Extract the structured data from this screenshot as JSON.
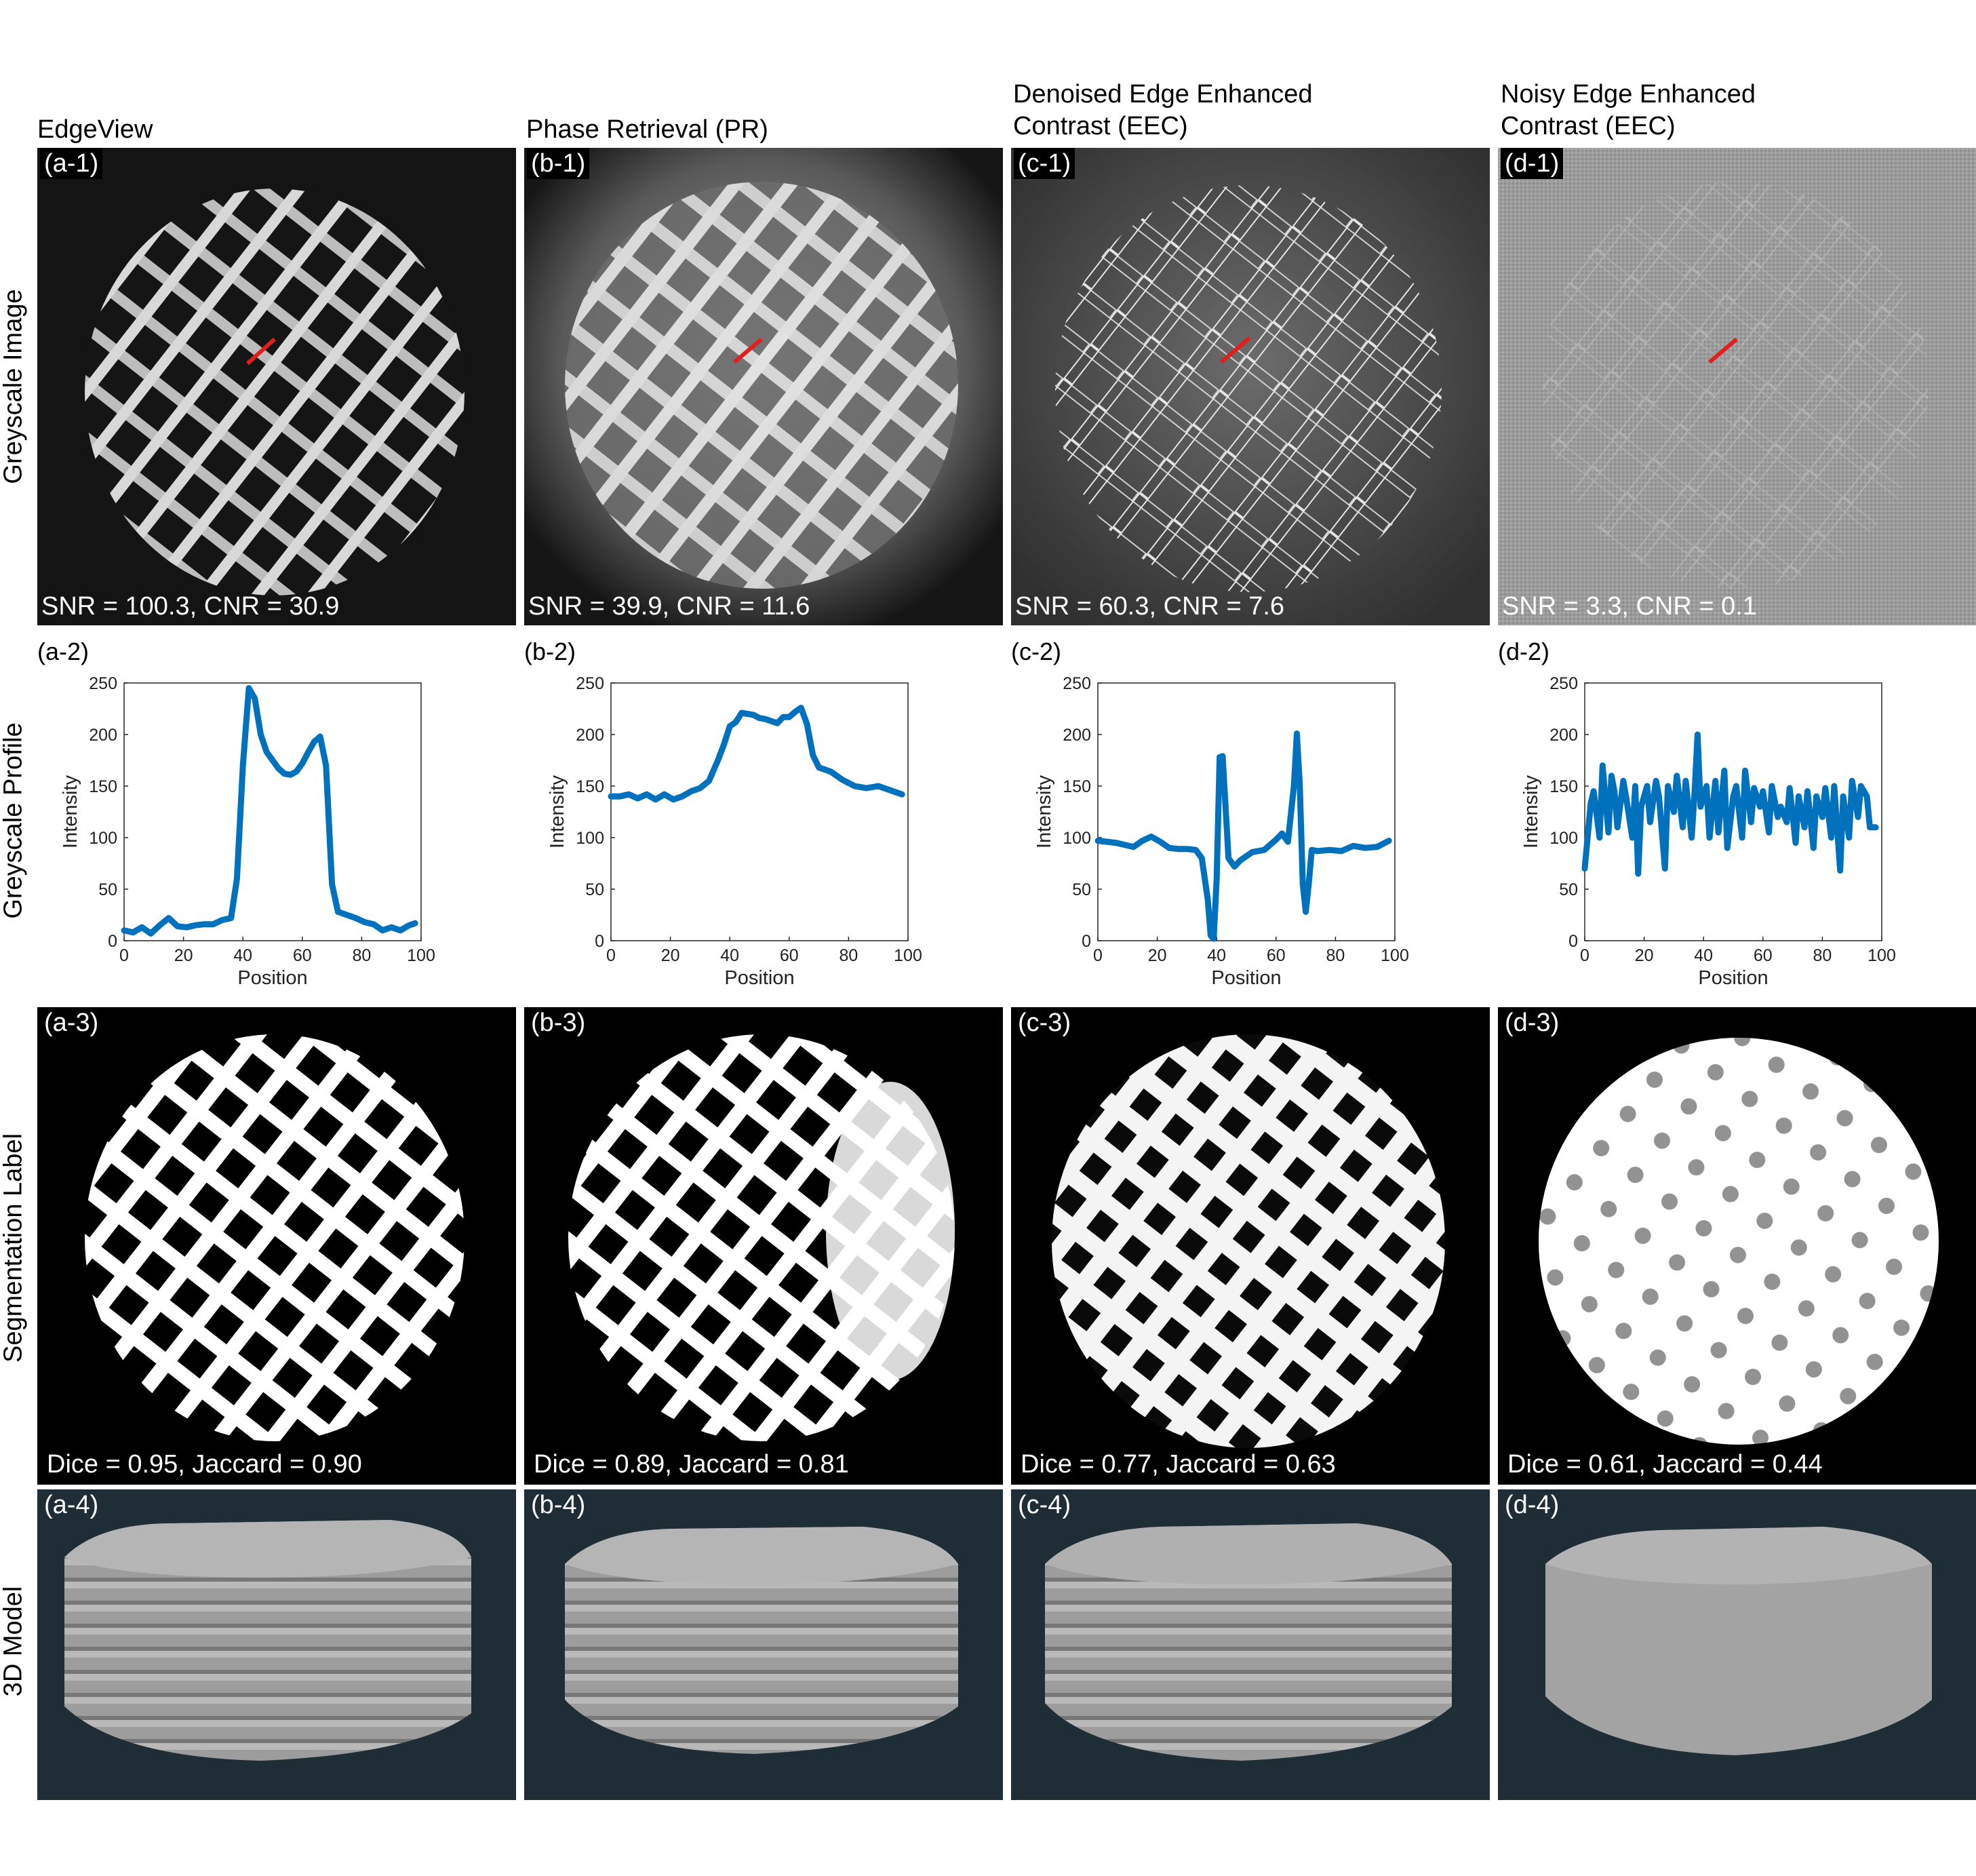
{
  "columns": [
    {
      "title": [
        "EdgeView"
      ],
      "img_tag": "(a-1)",
      "metric": "SNR = 100.3, CNR = 30.9",
      "profile_tag": "(a-2)",
      "seg_tag": "(a-3)",
      "seg_metric": "Dice = 0.95, Jaccard = 0.90",
      "model_tag": "(a-4)"
    },
    {
      "title": [
        "Phase Retrieval (PR)"
      ],
      "img_tag": "(b-1)",
      "metric": "SNR = 39.9, CNR = 11.6",
      "profile_tag": "(b-2)",
      "seg_tag": "(b-3)",
      "seg_metric": "Dice = 0.89, Jaccard = 0.81",
      "model_tag": "(b-4)"
    },
    {
      "title": [
        "Denoised Edge Enhanced",
        "Contrast (EEC)"
      ],
      "img_tag": "(c-1)",
      "metric": "SNR = 60.3, CNR = 7.6",
      "profile_tag": "(c-2)",
      "seg_tag": "(c-3)",
      "seg_metric": "Dice = 0.77, Jaccard = 0.63",
      "model_tag": "(c-4)"
    },
    {
      "title": [
        "Noisy Edge Enhanced",
        "Contrast (EEC)"
      ],
      "img_tag": "(d-1)",
      "metric": "SNR = 3.3, CNR = 0.1",
      "profile_tag": "(d-2)",
      "seg_tag": "(d-3)",
      "seg_metric": "Dice = 0.61, Jaccard = 0.44",
      "model_tag": "(d-4)"
    }
  ],
  "rows": [
    "Greyscale Image",
    "Greyscale Profile",
    "Segmentation Label",
    "3D Model"
  ],
  "colors": {
    "line": "#0072bd",
    "profile_marker": "#e0201e",
    "model_bg": "#1e2d36"
  },
  "chart_data": [
    {
      "type": "line",
      "xlabel": "Position",
      "ylabel": "Intensity",
      "xlim": [
        0,
        100
      ],
      "ylim": [
        0,
        250
      ],
      "xticks": [
        0,
        20,
        40,
        60,
        80,
        100
      ],
      "yticks": [
        0,
        50,
        100,
        150,
        200,
        250
      ],
      "x": [
        0,
        3,
        6,
        9,
        12,
        15,
        18,
        21,
        24,
        27,
        30,
        33,
        36,
        38,
        40,
        42,
        44,
        46,
        48,
        50,
        52,
        54,
        56,
        58,
        60,
        62,
        64,
        66,
        68,
        70,
        72,
        75,
        78,
        81,
        84,
        87,
        90,
        93,
        96,
        98
      ],
      "y": [
        10,
        8,
        13,
        7,
        15,
        22,
        14,
        13,
        15,
        16,
        16,
        20,
        22,
        60,
        170,
        245,
        235,
        200,
        183,
        175,
        167,
        162,
        161,
        164,
        172,
        183,
        193,
        198,
        170,
        55,
        28,
        25,
        22,
        18,
        16,
        10,
        13,
        10,
        15,
        17
      ]
    },
    {
      "type": "line",
      "xlabel": "Position",
      "ylabel": "Intensity",
      "xlim": [
        0,
        100
      ],
      "ylim": [
        0,
        250
      ],
      "xticks": [
        0,
        20,
        40,
        60,
        80,
        100
      ],
      "yticks": [
        0,
        50,
        100,
        150,
        200,
        250
      ],
      "x": [
        0,
        3,
        6,
        9,
        12,
        15,
        18,
        21,
        24,
        27,
        30,
        33,
        36,
        38,
        40,
        42,
        44,
        46,
        48,
        50,
        52,
        54,
        56,
        58,
        60,
        62,
        64,
        66,
        68,
        70,
        74,
        78,
        82,
        86,
        90,
        94,
        98
      ],
      "y": [
        140,
        140,
        142,
        138,
        142,
        137,
        142,
        137,
        140,
        145,
        148,
        155,
        175,
        190,
        208,
        212,
        221,
        220,
        219,
        216,
        215,
        213,
        211,
        217,
        217,
        222,
        226,
        210,
        180,
        168,
        164,
        156,
        150,
        148,
        150,
        146,
        142
      ]
    },
    {
      "type": "line",
      "xlabel": "Position",
      "ylabel": "Intensity",
      "xlim": [
        0,
        100
      ],
      "ylim": [
        0,
        250
      ],
      "xticks": [
        0,
        20,
        40,
        60,
        80,
        100
      ],
      "yticks": [
        0,
        50,
        100,
        150,
        200,
        250
      ],
      "x": [
        0,
        3,
        6,
        9,
        12,
        15,
        18,
        21,
        24,
        27,
        30,
        33,
        35,
        37,
        38,
        39,
        40,
        41,
        42,
        43,
        44,
        46,
        48,
        52,
        56,
        60,
        62,
        64,
        66,
        67,
        68,
        69,
        70,
        71,
        72,
        74,
        78,
        82,
        86,
        90,
        94,
        98
      ],
      "y": [
        97,
        96,
        95,
        93,
        91,
        97,
        101,
        96,
        90,
        89,
        89,
        88,
        80,
        40,
        5,
        2,
        60,
        178,
        179,
        130,
        80,
        72,
        78,
        86,
        88,
        98,
        104,
        96,
        150,
        201,
        150,
        55,
        28,
        55,
        88,
        87,
        88,
        87,
        92,
        90,
        91,
        97
      ]
    },
    {
      "type": "line",
      "xlabel": "Position",
      "ylabel": "Intensity",
      "xlim": [
        0,
        100
      ],
      "ylim": [
        0,
        250
      ],
      "xticks": [
        0,
        20,
        40,
        60,
        80,
        100
      ],
      "yticks": [
        0,
        50,
        100,
        150,
        200,
        250
      ],
      "x": [
        0,
        2,
        3,
        5,
        6,
        8,
        9,
        10,
        11,
        13,
        14,
        16,
        17,
        18,
        19,
        21,
        22,
        24,
        25,
        27,
        28,
        30,
        31,
        33,
        34,
        36,
        37,
        38,
        39,
        41,
        42,
        44,
        45,
        47,
        48,
        50,
        51,
        53,
        54,
        56,
        57,
        59,
        60,
        62,
        63,
        65,
        66,
        68,
        69,
        71,
        72,
        74,
        75,
        77,
        78,
        80,
        81,
        83,
        84,
        86,
        87,
        89,
        90,
        92,
        93,
        95,
        96,
        98
      ],
      "y": [
        70,
        133,
        145,
        100,
        170,
        105,
        160,
        145,
        110,
        155,
        138,
        100,
        150,
        65,
        130,
        150,
        115,
        155,
        140,
        70,
        150,
        125,
        160,
        110,
        155,
        100,
        145,
        200,
        130,
        150,
        100,
        155,
        105,
        165,
        90,
        140,
        150,
        100,
        165,
        115,
        148,
        130,
        145,
        105,
        150,
        120,
        130,
        115,
        148,
        95,
        140,
        110,
        145,
        90,
        140,
        120,
        148,
        100,
        150,
        68,
        140,
        100,
        155,
        120,
        150,
        140,
        110,
        110
      ]
    }
  ]
}
